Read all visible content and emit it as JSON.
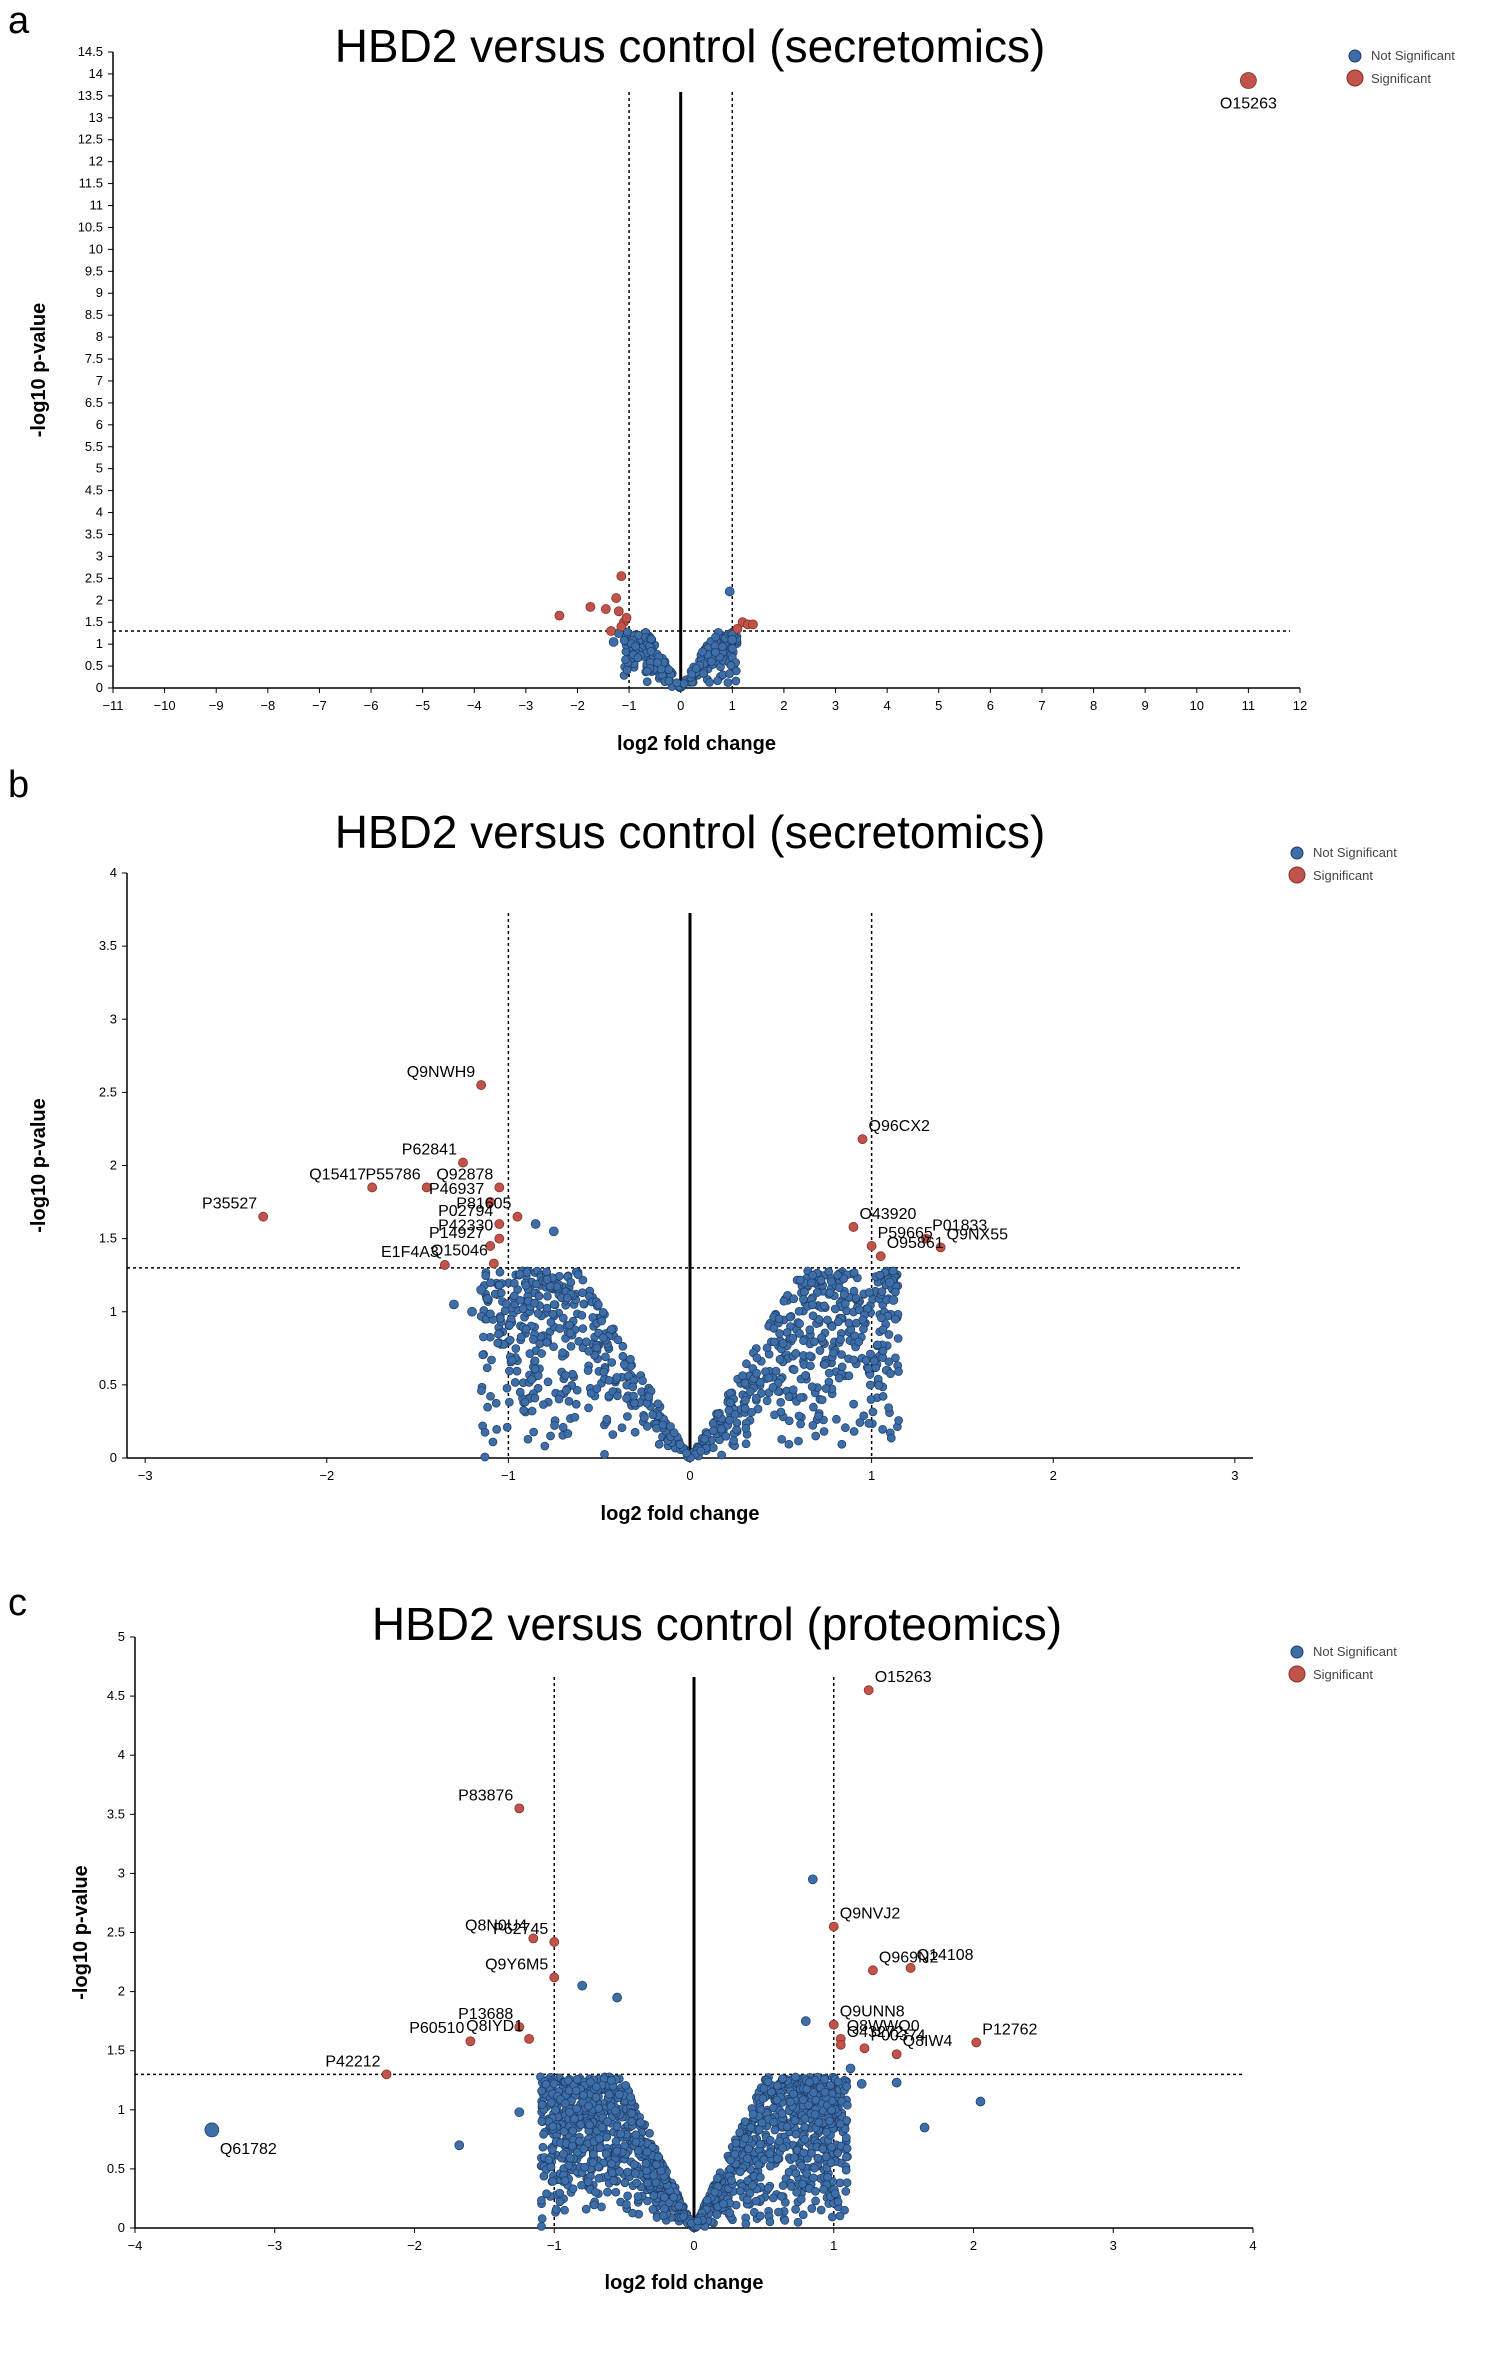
{
  "colors": {
    "not_significant": "#3d6ea8",
    "not_significant_stroke": "#1d3b66",
    "significant": "#c0534a",
    "significant_stroke": "#8a2f28"
  },
  "panel_letters": [
    "a",
    "b",
    "c"
  ],
  "chart_data": [
    {
      "type": "scatter",
      "panel": "a",
      "title": "HBD2 versus control (secretomics)",
      "xlabel": "log2 fold change",
      "ylabel": "-log10 p-value",
      "xlim": [
        -11,
        12
      ],
      "ylim": [
        0,
        14.5
      ],
      "xticks": [
        -11,
        -10,
        -9,
        -8,
        -7,
        -6,
        -5,
        -4,
        -3,
        -2,
        -1,
        0,
        1,
        2,
        3,
        4,
        5,
        6,
        7,
        8,
        9,
        10,
        11,
        12
      ],
      "yticks": [
        0,
        0.5,
        1,
        1.5,
        2,
        2.5,
        3,
        3.5,
        4,
        4.5,
        5,
        5.5,
        6,
        6.5,
        7,
        7.5,
        8,
        8.5,
        9,
        9.5,
        10,
        10.5,
        11,
        11.5,
        12,
        12.5,
        13,
        13.5,
        14,
        14.5
      ],
      "vlines": [
        -1,
        1
      ],
      "hline": 1.3,
      "legend": {
        "position": "top-right",
        "entries": [
          "Not Significant",
          "Significant"
        ]
      },
      "series": [
        {
          "name": "Significant",
          "points": [
            [
              11.0,
              13.85,
              "O15263"
            ],
            [
              -2.35,
              1.65,
              ""
            ],
            [
              -1.75,
              1.85,
              ""
            ],
            [
              -1.45,
              1.8,
              ""
            ],
            [
              -1.25,
              2.05,
              ""
            ],
            [
              -1.15,
              2.55,
              ""
            ],
            [
              -1.2,
              1.75,
              ""
            ],
            [
              -1.1,
              1.5,
              ""
            ],
            [
              -1.15,
              1.4,
              ""
            ],
            [
              -1.35,
              1.3,
              ""
            ],
            [
              -1.05,
              1.6,
              ""
            ],
            [
              1.2,
              1.5,
              ""
            ],
            [
              1.3,
              1.45,
              ""
            ],
            [
              1.4,
              1.45,
              ""
            ],
            [
              1.1,
              1.35,
              ""
            ]
          ]
        },
        {
          "name": "Not Significant",
          "cloud": {
            "halfwidth": 1.1,
            "ymax": 1.6,
            "n": 260,
            "seed": 3
          },
          "extra": [
            [
              0.95,
              2.2
            ],
            [
              1.0,
              1.1
            ],
            [
              -1.2,
              1.25
            ],
            [
              -1.3,
              1.05
            ]
          ]
        }
      ]
    },
    {
      "type": "scatter",
      "panel": "b",
      "title": "HBD2 versus control (secretomics)",
      "xlabel": "log2 fold change",
      "ylabel": "-log10 p-value",
      "xlim": [
        -3.1,
        3.1
      ],
      "ylim": [
        0,
        4
      ],
      "xticks": [
        -3,
        -2,
        -1,
        0,
        1,
        2,
        3
      ],
      "yticks": [
        0,
        0.5,
        1,
        1.5,
        2,
        2.5,
        3,
        3.5,
        4
      ],
      "vlines": [
        -1,
        1
      ],
      "hline": 1.3,
      "legend": {
        "position": "top-right",
        "entries": [
          "Not Significant",
          "Significant"
        ]
      },
      "series": [
        {
          "name": "Significant",
          "points": [
            [
              -1.15,
              2.55,
              "Q9NWH9"
            ],
            [
              -1.25,
              2.02,
              "P62841"
            ],
            [
              -1.45,
              1.85,
              "P55786"
            ],
            [
              -1.75,
              1.85,
              "Q15417"
            ],
            [
              -1.1,
              1.75,
              "P46937"
            ],
            [
              -1.05,
              1.85,
              "Q92878"
            ],
            [
              -2.35,
              1.65,
              "P35527"
            ],
            [
              -1.05,
              1.6,
              "P02794"
            ],
            [
              -0.95,
              1.65,
              "P81605"
            ],
            [
              -1.1,
              1.45,
              "P14927"
            ],
            [
              -1.05,
              1.5,
              "P42330"
            ],
            [
              -1.35,
              1.32,
              "E1F4A3"
            ],
            [
              -1.08,
              1.33,
              "Q15046"
            ],
            [
              0.95,
              2.18,
              "Q96CX2"
            ],
            [
              0.9,
              1.58,
              "O43920"
            ],
            [
              1.3,
              1.5,
              "P01833"
            ],
            [
              1.38,
              1.44,
              "Q9NX55"
            ],
            [
              1.0,
              1.45,
              "P59665"
            ],
            [
              1.05,
              1.38,
              "O95861"
            ]
          ]
        },
        {
          "name": "Not Significant",
          "cloud": {
            "halfwidth": 1.15,
            "ymax": 1.75,
            "n": 900,
            "seed": 11
          },
          "extra": [
            [
              -1.2,
              1.0
            ],
            [
              -1.3,
              1.05
            ],
            [
              -1.15,
              1.15
            ],
            [
              1.12,
              1.08
            ],
            [
              1.1,
              1.2
            ],
            [
              -0.85,
              1.6
            ],
            [
              -0.75,
              1.55
            ]
          ]
        }
      ]
    },
    {
      "type": "scatter",
      "panel": "c",
      "title": "HBD2 versus control (proteomics)",
      "xlabel": "log2 fold change",
      "ylabel": "-log10 p-value",
      "xlim": [
        -4,
        4
      ],
      "ylim": [
        0,
        5
      ],
      "xticks": [
        -4,
        -3,
        -2,
        -1,
        0,
        1,
        2,
        3,
        4
      ],
      "yticks": [
        0,
        0.5,
        1,
        1.5,
        2,
        2.5,
        3,
        3.5,
        4,
        4.5,
        5
      ],
      "vlines": [
        -1,
        1
      ],
      "hline": 1.3,
      "legend": {
        "position": "top-right",
        "entries": [
          "Not Significant",
          "Significant"
        ]
      },
      "series": [
        {
          "name": "Significant",
          "points": [
            [
              1.25,
              4.55,
              "O15263"
            ],
            [
              -1.25,
              3.55,
              "P83876"
            ],
            [
              1.0,
              2.55,
              "Q9NVJ2"
            ],
            [
              -1.15,
              2.45,
              "Q8N0U4"
            ],
            [
              -1.0,
              2.42,
              "P62745"
            ],
            [
              1.55,
              2.2,
              "Q14108"
            ],
            [
              1.28,
              2.18,
              "Q969N2"
            ],
            [
              -1.0,
              2.12,
              "Q9Y6M5"
            ],
            [
              1.0,
              1.72,
              "Q9UNN8"
            ],
            [
              -1.25,
              1.7,
              "P13688"
            ],
            [
              1.05,
              1.6,
              "Q8WWQ0"
            ],
            [
              2.02,
              1.57,
              "P12762"
            ],
            [
              -1.6,
              1.58,
              "P60510"
            ],
            [
              -1.18,
              1.6,
              "Q8IYD1"
            ],
            [
              1.22,
              1.52,
              "P00374"
            ],
            [
              1.45,
              1.47,
              "Q8IW4"
            ],
            [
              1.05,
              1.55,
              "O43272"
            ],
            [
              -2.2,
              1.3,
              "P42212"
            ]
          ]
        },
        {
          "name": "Not Significant",
          "cloud": {
            "halfwidth": 1.1,
            "ymax": 2.0,
            "n": 1500,
            "seed": 23
          },
          "extra": [
            [
              -3.45,
              0.83,
              "Q61782"
            ],
            [
              0.85,
              2.95
            ],
            [
              2.05,
              1.07
            ],
            [
              1.65,
              0.85
            ],
            [
              -1.68,
              0.7
            ],
            [
              -1.25,
              0.98
            ],
            [
              1.45,
              1.23
            ],
            [
              1.2,
              1.22
            ],
            [
              1.12,
              1.35
            ],
            [
              0.8,
              1.75
            ],
            [
              -0.55,
              1.95
            ],
            [
              -0.8,
              2.05
            ]
          ]
        }
      ]
    }
  ]
}
